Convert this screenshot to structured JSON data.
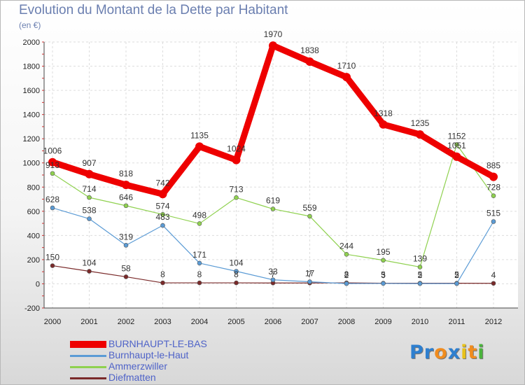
{
  "title": "Evolution du Montant de la Dette par Habitant",
  "subtitle": "(en €)",
  "logo": {
    "chars": [
      "P",
      "r",
      "o",
      "x",
      "i",
      "t",
      "i"
    ],
    "colors": [
      "#2e7fcf",
      "#2e7fcf",
      "#f08c1e",
      "#2e7fcf",
      "#e8c21a",
      "#f08c1e",
      "#4ab33c"
    ]
  },
  "chart_data": {
    "type": "line",
    "x": [
      "2000",
      "2001",
      "2002",
      "2003",
      "2004",
      "2005",
      "2006",
      "2007",
      "2008",
      "2009",
      "2010",
      "2011",
      "2012"
    ],
    "ylim": [
      -200,
      2000
    ],
    "yticks": [
      "-200",
      "0",
      "200",
      "400",
      "600",
      "800",
      "1000",
      "1200",
      "1400",
      "1600",
      "1800",
      "2000"
    ],
    "grid": true,
    "legend_position": "bottom-left",
    "series": [
      {
        "name": "BURNHAUPT-LE-BAS",
        "color": "#ee0000",
        "values": [
          1006,
          907,
          818,
          742,
          1135,
          1024,
          1970,
          1838,
          1710,
          1318,
          1235,
          1051,
          885
        ],
        "labels": [
          "1006",
          "907",
          "818",
          "742",
          "1135",
          "1024",
          "1970",
          "1838",
          "1710",
          "1318",
          "1235",
          "1051",
          "885"
        ]
      },
      {
        "name": "Burnhaupt-le-Haut",
        "color": "#5b9bd5",
        "values": [
          628,
          538,
          319,
          483,
          171,
          104,
          33,
          17,
          2,
          3,
          2,
          2,
          515
        ],
        "labels": [
          "628",
          "538",
          "319",
          "483",
          "171",
          "104",
          "33",
          "17",
          "2",
          "3",
          "2",
          "2",
          "515"
        ]
      },
      {
        "name": "Ammerzwiller",
        "color": "#8fd14f",
        "values": [
          913,
          714,
          646,
          574,
          498,
          713,
          619,
          559,
          244,
          195,
          139,
          1152,
          728
        ],
        "labels": [
          "913",
          "714",
          "646",
          "574",
          "498",
          "713",
          "619",
          "559",
          "244",
          "195",
          "139",
          "1152",
          "728"
        ]
      },
      {
        "name": "Diefmatten",
        "color": "#7a2a2a",
        "values": [
          150,
          104,
          58,
          8,
          8,
          8,
          7,
          7,
          8,
          5,
          5,
          5,
          4
        ],
        "labels": [
          "150",
          "104",
          "58",
          "8",
          "8",
          "8",
          "7",
          "7",
          "8",
          "5",
          "5",
          "5",
          "4"
        ]
      }
    ]
  }
}
